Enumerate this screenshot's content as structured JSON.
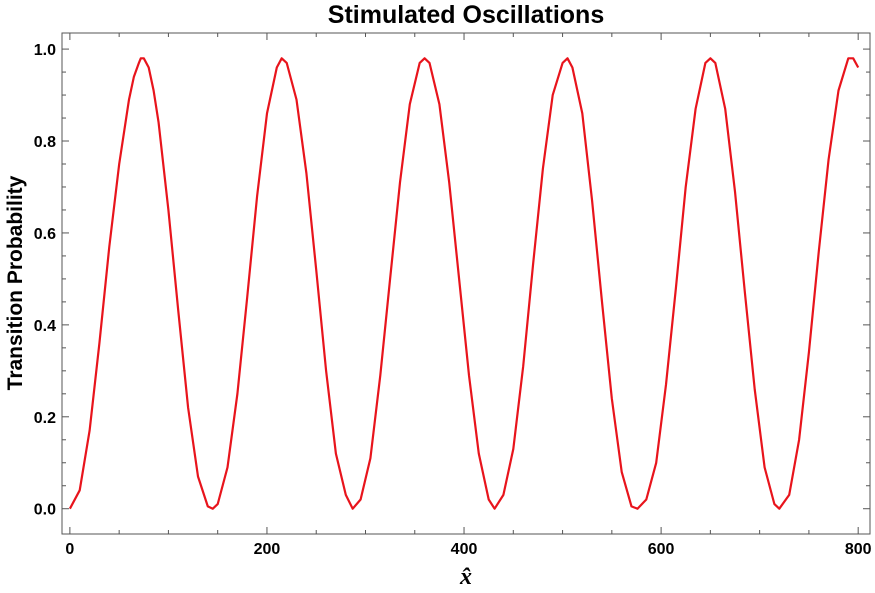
{
  "chart_data": {
    "type": "line",
    "title": "Stimulated Oscillations",
    "xlabel": "x̂",
    "ylabel": "Transition Probability",
    "xlim": [
      -8,
      812
    ],
    "ylim": [
      -0.055,
      1.035
    ],
    "x_ticks": [
      0,
      200,
      400,
      600,
      800
    ],
    "x_tick_labels": [
      "0",
      "200",
      "400",
      "600",
      "800"
    ],
    "y_ticks": [
      0.0,
      0.2,
      0.4,
      0.6,
      0.8,
      1.0
    ],
    "y_tick_labels": [
      "0.0",
      "0.2",
      "0.4",
      "0.6",
      "0.8",
      "1.0"
    ],
    "grid": false,
    "legend": "none",
    "series": [
      {
        "color": "#e8141c",
        "x": [
          0,
          10,
          20,
          30,
          40,
          50,
          60,
          65,
          70,
          72,
          75,
          80,
          85,
          90,
          100,
          110,
          120,
          130,
          140,
          145,
          150,
          160,
          170,
          180,
          190,
          200,
          210,
          215,
          220,
          230,
          240,
          250,
          260,
          270,
          280,
          287,
          295,
          305,
          315,
          325,
          335,
          345,
          355,
          360,
          365,
          375,
          385,
          395,
          405,
          415,
          425,
          431,
          440,
          450,
          460,
          470,
          480,
          490,
          500,
          505,
          510,
          520,
          530,
          540,
          550,
          560,
          570,
          576,
          585,
          595,
          605,
          615,
          625,
          635,
          645,
          650,
          655,
          665,
          675,
          685,
          695,
          705,
          715,
          720,
          730,
          740,
          750,
          760,
          770,
          780,
          790,
          795,
          800
        ],
        "y": [
          0.0,
          0.04,
          0.17,
          0.36,
          0.57,
          0.75,
          0.89,
          0.94,
          0.97,
          0.98,
          0.98,
          0.96,
          0.91,
          0.84,
          0.65,
          0.43,
          0.22,
          0.07,
          0.005,
          0.0,
          0.01,
          0.09,
          0.25,
          0.46,
          0.68,
          0.86,
          0.96,
          0.98,
          0.97,
          0.89,
          0.73,
          0.52,
          0.3,
          0.12,
          0.03,
          0.0,
          0.02,
          0.11,
          0.29,
          0.5,
          0.71,
          0.88,
          0.97,
          0.98,
          0.97,
          0.88,
          0.71,
          0.5,
          0.29,
          0.12,
          0.02,
          0.0,
          0.03,
          0.13,
          0.31,
          0.53,
          0.74,
          0.9,
          0.97,
          0.98,
          0.96,
          0.86,
          0.67,
          0.45,
          0.24,
          0.08,
          0.005,
          0.0,
          0.02,
          0.1,
          0.27,
          0.48,
          0.7,
          0.87,
          0.97,
          0.98,
          0.97,
          0.87,
          0.69,
          0.47,
          0.26,
          0.09,
          0.01,
          0.0,
          0.03,
          0.15,
          0.34,
          0.56,
          0.76,
          0.91,
          0.98,
          0.98,
          0.96
        ]
      }
    ]
  }
}
